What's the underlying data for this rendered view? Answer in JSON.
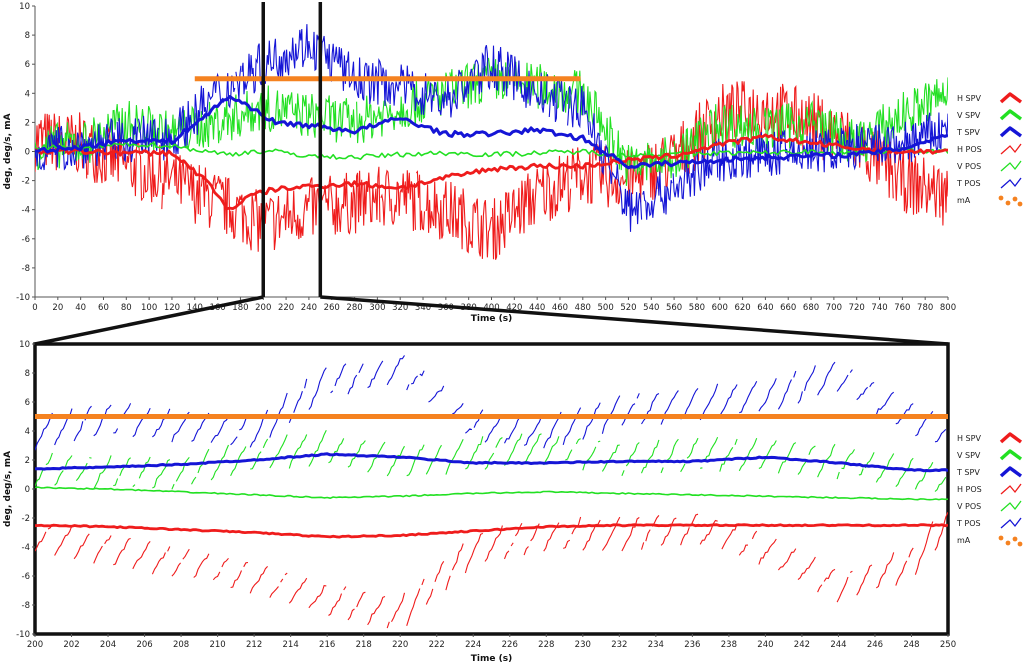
{
  "colors": {
    "H": "#ef1c1c",
    "V": "#22e022",
    "T": "#1515d6",
    "mA": "#f58220",
    "frame": "#111111",
    "axis": "#555555"
  },
  "legend_items": [
    {
      "label": "H SPV",
      "color": "#ef1c1c",
      "style": "thick-caret"
    },
    {
      "label": "V SPV",
      "color": "#22e022",
      "style": "thick-caret"
    },
    {
      "label": "T SPV",
      "color": "#1515d6",
      "style": "thick-caret"
    },
    {
      "label": "H POS",
      "color": "#ef1c1c",
      "style": "thin-wave"
    },
    {
      "label": "V POS",
      "color": "#22e022",
      "style": "thin-wave"
    },
    {
      "label": "T POS",
      "color": "#1515d6",
      "style": "thin-wave"
    },
    {
      "label": "mA",
      "color": "#f58220",
      "style": "dots"
    }
  ],
  "chart_data": [
    {
      "type": "line",
      "xlabel": "Time (s)",
      "ylabel": "deg, deg/s, mA",
      "xlim": [
        0,
        800
      ],
      "ylim": [
        -10,
        10
      ],
      "xticks": [
        0,
        20,
        40,
        60,
        80,
        100,
        120,
        140,
        160,
        180,
        200,
        220,
        240,
        260,
        280,
        300,
        320,
        340,
        360,
        380,
        400,
        420,
        440,
        460,
        480,
        500,
        520,
        540,
        560,
        580,
        600,
        620,
        640,
        660,
        680,
        700,
        720,
        740,
        760,
        780,
        800
      ],
      "yticks": [
        -10,
        -8,
        -6,
        -4,
        -2,
        0,
        2,
        4,
        6,
        8,
        10
      ],
      "legend_position": "right",
      "grid": false,
      "zoom_window": [
        200,
        250
      ],
      "series": [
        {
          "name": "H SPV",
          "x": [
            0,
            40,
            80,
            120,
            150,
            170,
            190,
            210,
            240,
            280,
            320,
            360,
            400,
            440,
            480,
            520,
            560,
            600,
            640,
            680,
            720,
            760,
            800
          ],
          "values": [
            0,
            0,
            -0.1,
            -0.1,
            -2,
            -4,
            -3,
            -2.6,
            -2.4,
            -2.2,
            -2.5,
            -1.8,
            -1.2,
            -1,
            -1,
            -0.6,
            -0.3,
            0.5,
            1,
            0.6,
            0.2,
            0,
            0
          ]
        },
        {
          "name": "V SPV",
          "x": [
            0,
            40,
            80,
            120,
            150,
            170,
            190,
            210,
            240,
            280,
            320,
            360,
            400,
            440,
            480,
            520,
            560,
            600,
            640,
            680,
            720,
            760,
            800
          ],
          "values": [
            0.3,
            0.2,
            0.5,
            0.4,
            0,
            -0.2,
            0,
            0,
            -0.3,
            -0.4,
            -0.2,
            -0.1,
            -0.2,
            -0.1,
            0,
            -0.3,
            -0.2,
            -0.1,
            -0.1,
            0,
            -0.1,
            0.1,
            0
          ]
        },
        {
          "name": "T SPV",
          "x": [
            0,
            40,
            80,
            120,
            150,
            170,
            190,
            210,
            240,
            280,
            320,
            360,
            400,
            440,
            480,
            520,
            560,
            600,
            640,
            680,
            720,
            760,
            800
          ],
          "values": [
            0,
            0.3,
            0.8,
            0.7,
            2.5,
            3.8,
            3,
            2,
            1.8,
            1.4,
            2.3,
            1.2,
            1.2,
            1.5,
            0.9,
            -1,
            -0.8,
            -0.6,
            -0.4,
            -0.3,
            -0.2,
            0.2,
            1.2
          ]
        },
        {
          "name": "H POS",
          "x": [
            0,
            40,
            80,
            120,
            160,
            200,
            240,
            280,
            320,
            360,
            400,
            440,
            480,
            520,
            560,
            600,
            640,
            680,
            720,
            760,
            800
          ],
          "values": [
            0.8,
            0.5,
            -1,
            -2,
            -3.5,
            -5,
            -4,
            -3.5,
            -3,
            -4,
            -5.5,
            -3,
            -1.5,
            -2,
            -0.5,
            2.5,
            3,
            2,
            0.5,
            -2,
            -3
          ]
        },
        {
          "name": "V POS",
          "x": [
            0,
            40,
            80,
            120,
            160,
            200,
            240,
            280,
            320,
            360,
            400,
            440,
            480,
            520,
            560,
            600,
            640,
            680,
            720,
            760,
            800
          ],
          "values": [
            0.3,
            0.5,
            2,
            1.2,
            2,
            3,
            2.5,
            2,
            3,
            4,
            5,
            4.5,
            4,
            -1,
            -0.5,
            2,
            1.5,
            2,
            0.5,
            2.5,
            4
          ]
        },
        {
          "name": "T POS",
          "x": [
            0,
            40,
            80,
            120,
            160,
            200,
            240,
            280,
            320,
            360,
            400,
            440,
            480,
            520,
            560,
            600,
            640,
            680,
            720,
            760,
            800
          ],
          "values": [
            0,
            0.4,
            0.8,
            1,
            4,
            6,
            7.5,
            5,
            4.5,
            3.5,
            6,
            4,
            3,
            -4,
            -2.5,
            -0.5,
            -0.2,
            0,
            0.3,
            0.5,
            1.5
          ]
        },
        {
          "name": "mA",
          "x": [
            140,
            478
          ],
          "values": [
            5,
            5
          ]
        }
      ]
    },
    {
      "type": "line",
      "xlabel": "Time (s)",
      "ylabel": "deg, deg/s, mA",
      "xlim": [
        200,
        250
      ],
      "ylim": [
        -10,
        10
      ],
      "xticks": [
        200,
        202,
        204,
        206,
        208,
        210,
        212,
        214,
        216,
        218,
        220,
        222,
        224,
        226,
        228,
        230,
        232,
        234,
        236,
        238,
        240,
        242,
        244,
        246,
        248,
        250
      ],
      "yticks": [
        -10,
        -8,
        -6,
        -4,
        -2,
        0,
        2,
        4,
        6,
        8,
        10
      ],
      "legend_position": "right",
      "grid": false,
      "series": [
        {
          "name": "H SPV",
          "x": [
            200,
            204,
            208,
            212,
            216,
            220,
            224,
            228,
            232,
            236,
            240,
            244,
            248,
            250
          ],
          "values": [
            -2.5,
            -2.6,
            -2.8,
            -3.0,
            -3.3,
            -3.2,
            -2.9,
            -2.6,
            -2.5,
            -2.5,
            -2.5,
            -2.5,
            -2.5,
            -2.5
          ]
        },
        {
          "name": "V SPV",
          "x": [
            200,
            204,
            208,
            212,
            216,
            220,
            224,
            228,
            232,
            236,
            240,
            244,
            248,
            250
          ],
          "values": [
            0.1,
            0,
            -0.2,
            -0.4,
            -0.6,
            -0.5,
            -0.3,
            -0.2,
            -0.3,
            -0.4,
            -0.5,
            -0.6,
            -0.7,
            -0.7
          ]
        },
        {
          "name": "T SPV",
          "x": [
            200,
            204,
            208,
            212,
            216,
            220,
            224,
            228,
            232,
            236,
            240,
            244,
            248,
            250
          ],
          "values": [
            1.4,
            1.5,
            1.7,
            2.0,
            2.4,
            2.2,
            1.8,
            1.8,
            1.9,
            1.9,
            2.2,
            1.8,
            1.3,
            1.3
          ]
        },
        {
          "name": "H POS",
          "x": [
            200,
            204,
            208,
            212,
            216,
            220,
            224,
            228,
            232,
            236,
            240,
            244,
            248,
            250
          ],
          "values": [
            -3,
            -4,
            -5,
            -6,
            -7.5,
            -8.5,
            -4,
            -3,
            -3,
            -2.5,
            -4,
            -6.5,
            -5,
            -2
          ]
        },
        {
          "name": "V POS",
          "x": [
            200,
            204,
            208,
            212,
            216,
            220,
            224,
            228,
            232,
            236,
            240,
            244,
            248,
            250
          ],
          "values": [
            1.5,
            1.3,
            1.2,
            2.5,
            3,
            2,
            2.5,
            3,
            2.2,
            2.5,
            2.5,
            2,
            1.2,
            0.8
          ]
        },
        {
          "name": "T POS",
          "x": [
            200,
            204,
            208,
            212,
            216,
            220,
            224,
            228,
            232,
            236,
            240,
            244,
            248,
            250
          ],
          "values": [
            4,
            5,
            4.5,
            4,
            7.5,
            8.5,
            4.5,
            4,
            5.5,
            6,
            6.5,
            8,
            5,
            4
          ]
        },
        {
          "name": "mA",
          "x": [
            200,
            250
          ],
          "values": [
            5,
            5
          ]
        }
      ]
    }
  ]
}
